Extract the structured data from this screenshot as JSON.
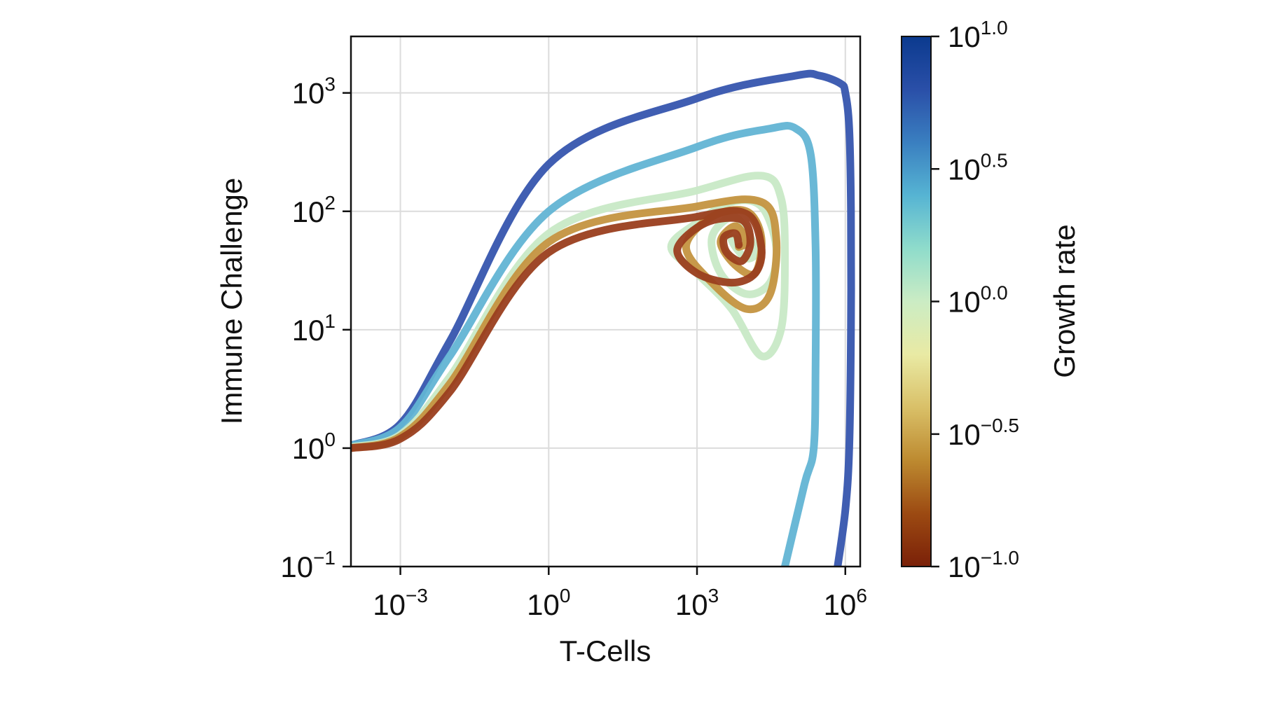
{
  "chart_data": {
    "type": "line",
    "title": "",
    "xlabel": "T-Cells",
    "ylabel": "Immune Challenge",
    "xscale": "log10",
    "yscale": "log10",
    "xlim": [
      0.0001,
      2000000.0
    ],
    "ylim": [
      0.1,
      3000
    ],
    "grid": true,
    "x_ticks": [
      {
        "exp": "−3",
        "value": 0.001
      },
      {
        "exp": "0",
        "value": 1
      },
      {
        "exp": "3",
        "value": 1000
      },
      {
        "exp": "6",
        "value": 1000000
      }
    ],
    "y_ticks": [
      {
        "exp": "−1",
        "value": 0.1
      },
      {
        "exp": "0",
        "value": 1
      },
      {
        "exp": "1",
        "value": 10
      },
      {
        "exp": "2",
        "value": 100
      },
      {
        "exp": "3",
        "value": 1000
      }
    ],
    "colorbar": {
      "label": "Growth rate",
      "scale": "log10",
      "range": [
        0.1,
        10
      ],
      "ticks": [
        {
          "exp": "1.0",
          "value": 10
        },
        {
          "exp": "0.5",
          "value": 3.162
        },
        {
          "exp": "0.0",
          "value": 1
        },
        {
          "exp": "−0.5",
          "value": 0.316
        },
        {
          "exp": "−1.0",
          "value": 0.1
        }
      ],
      "colors": [
        "#7a2008",
        "#9c4a12",
        "#bd8a30",
        "#d9c068",
        "#e9eaa4",
        "#cbecc4",
        "#8fdccb",
        "#56b4d3",
        "#3a7fc0",
        "#2a4fa8",
        "#0b3a8e"
      ]
    },
    "series": [
      {
        "growth_rate": 10,
        "color": "#3655ae",
        "x": [
          0.0001,
          0.001,
          0.01,
          1,
          1000,
          100000,
          300000,
          800000,
          1000000,
          1200000,
          1300000,
          1300000,
          1200000,
          1000000,
          700000
        ],
        "y": [
          1.05,
          1.6,
          8,
          250,
          900,
          1400,
          1400,
          1200,
          1000,
          500,
          100,
          10,
          1,
          0.3,
          0.1
        ]
      },
      {
        "growth_rate": 3.16,
        "color": "#62b4d4",
        "x": [
          0.0001,
          0.001,
          0.01,
          1,
          1000,
          30000,
          100000,
          200000,
          250000,
          250000,
          230000,
          150000,
          60000
        ],
        "y": [
          1.05,
          1.5,
          6,
          100,
          350,
          500,
          500,
          300,
          50,
          5,
          1,
          0.5,
          0.1
        ]
      },
      {
        "growth_rate": 1,
        "color": "#c8e9c6",
        "x": [
          0.0001,
          0.001,
          0.01,
          1,
          1000,
          20000,
          50000,
          60000,
          50000,
          20000,
          5000,
          1000,
          300,
          1000,
          5000,
          20000,
          40000,
          30000,
          10000,
          3000,
          2000,
          5000,
          10000,
          15000,
          10000,
          6000,
          5000,
          8000
        ],
        "y": [
          1.02,
          1.3,
          4,
          65,
          150,
          200,
          130,
          40,
          10,
          6,
          15,
          30,
          50,
          80,
          120,
          110,
          50,
          25,
          20,
          30,
          60,
          90,
          70,
          45,
          40,
          50,
          60,
          55
        ]
      },
      {
        "growth_rate": 0.32,
        "color": "#c49340",
        "x": [
          0.0001,
          0.001,
          0.01,
          1,
          1000,
          20000,
          40000,
          30000,
          10000,
          2000,
          600,
          2000,
          10000,
          20000,
          15000,
          6000,
          3000,
          6000,
          10000,
          7000
        ],
        "y": [
          1.0,
          1.25,
          3.5,
          55,
          110,
          120,
          60,
          20,
          15,
          25,
          50,
          90,
          100,
          60,
          30,
          35,
          55,
          75,
          55,
          50
        ]
      },
      {
        "growth_rate": 0.1,
        "color": "#9a3e1e",
        "x": [
          0.0001,
          0.001,
          0.01,
          1,
          1000,
          10000,
          20000,
          15000,
          5000,
          1000,
          400,
          1500,
          8000,
          12000,
          8000,
          4000,
          3500,
          6000,
          7000
        ],
        "y": [
          1.0,
          1.2,
          3,
          45,
          90,
          95,
          50,
          30,
          25,
          30,
          48,
          80,
          85,
          55,
          38,
          45,
          60,
          65,
          52
        ]
      }
    ]
  }
}
